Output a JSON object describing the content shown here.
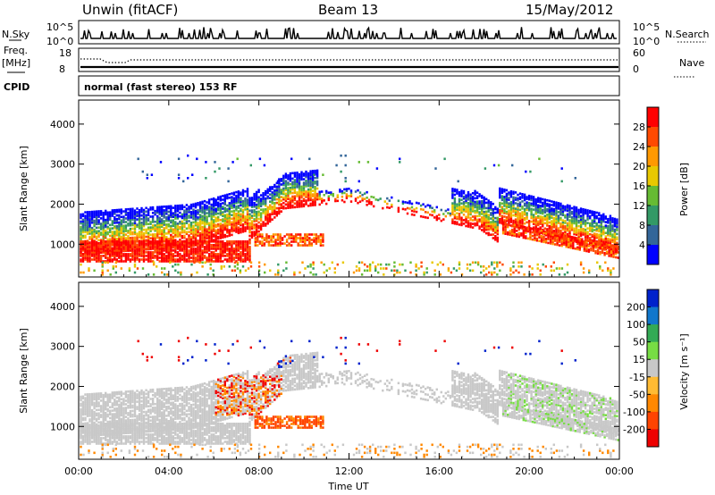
{
  "header": {
    "radar": "Unwin (fitACF)",
    "beam": "Beam 13",
    "date": "15/May/2012"
  },
  "top_panels": {
    "nsky_label": "N.Sky",
    "nsky_ticks": [
      "10^5",
      "10^0"
    ],
    "nsearch_label": "N.Search",
    "nsearch_ticks": [
      "10^5",
      "10^0"
    ],
    "freq_label": "Freq.",
    "freq_unit": "[MHz]",
    "freq_ticks": [
      "18",
      "8"
    ],
    "nave_label": "Nave",
    "nave_ticks": [
      "60",
      "0"
    ],
    "cpid_label": "CPID",
    "cpid_text": "normal (fast stereo) 153 RF"
  },
  "chart_data": [
    {
      "type": "heatmap",
      "name": "power",
      "ylabel": "Slant Range [km]",
      "y_ticks": [
        1000,
        2000,
        3000,
        4000
      ],
      "ylim": [
        180,
        4600
      ],
      "xlim": [
        0,
        24
      ],
      "x_ticks": [
        "00:00",
        "04:00",
        "08:00",
        "12:00",
        "16:00",
        "20:00",
        "00:00"
      ],
      "colorbar": {
        "label": "Power [dB]",
        "ticks": [
          "28",
          "24",
          "20",
          "16",
          "12",
          "8",
          "4"
        ],
        "colors": [
          "#ff0000",
          "#ff4a00",
          "#ff9900",
          "#e8c800",
          "#66bb33",
          "#339966",
          "#336699",
          "#0000ff"
        ]
      }
    },
    {
      "type": "heatmap",
      "name": "velocity",
      "ylabel": "Slant Range [km]",
      "y_ticks": [
        1000,
        2000,
        3000,
        4000
      ],
      "ylim": [
        180,
        4600
      ],
      "xlim": [
        0,
        24
      ],
      "x_ticks": [
        "00:00",
        "04:00",
        "08:00",
        "12:00",
        "16:00",
        "20:00",
        "00:00"
      ],
      "xlabel": "Time UT",
      "colorbar": {
        "label": "Velocity [m s⁻¹]",
        "ticks": [
          "200",
          "100",
          "50",
          "15",
          "-15",
          "-50",
          "-100",
          "-200"
        ],
        "colors": [
          "#0022cc",
          "#1177cc",
          "#33aa55",
          "#77dd44",
          "#c8c8c8",
          "#ffbb33",
          "#ff8800",
          "#ff4400",
          "#ee0000"
        ]
      }
    }
  ]
}
